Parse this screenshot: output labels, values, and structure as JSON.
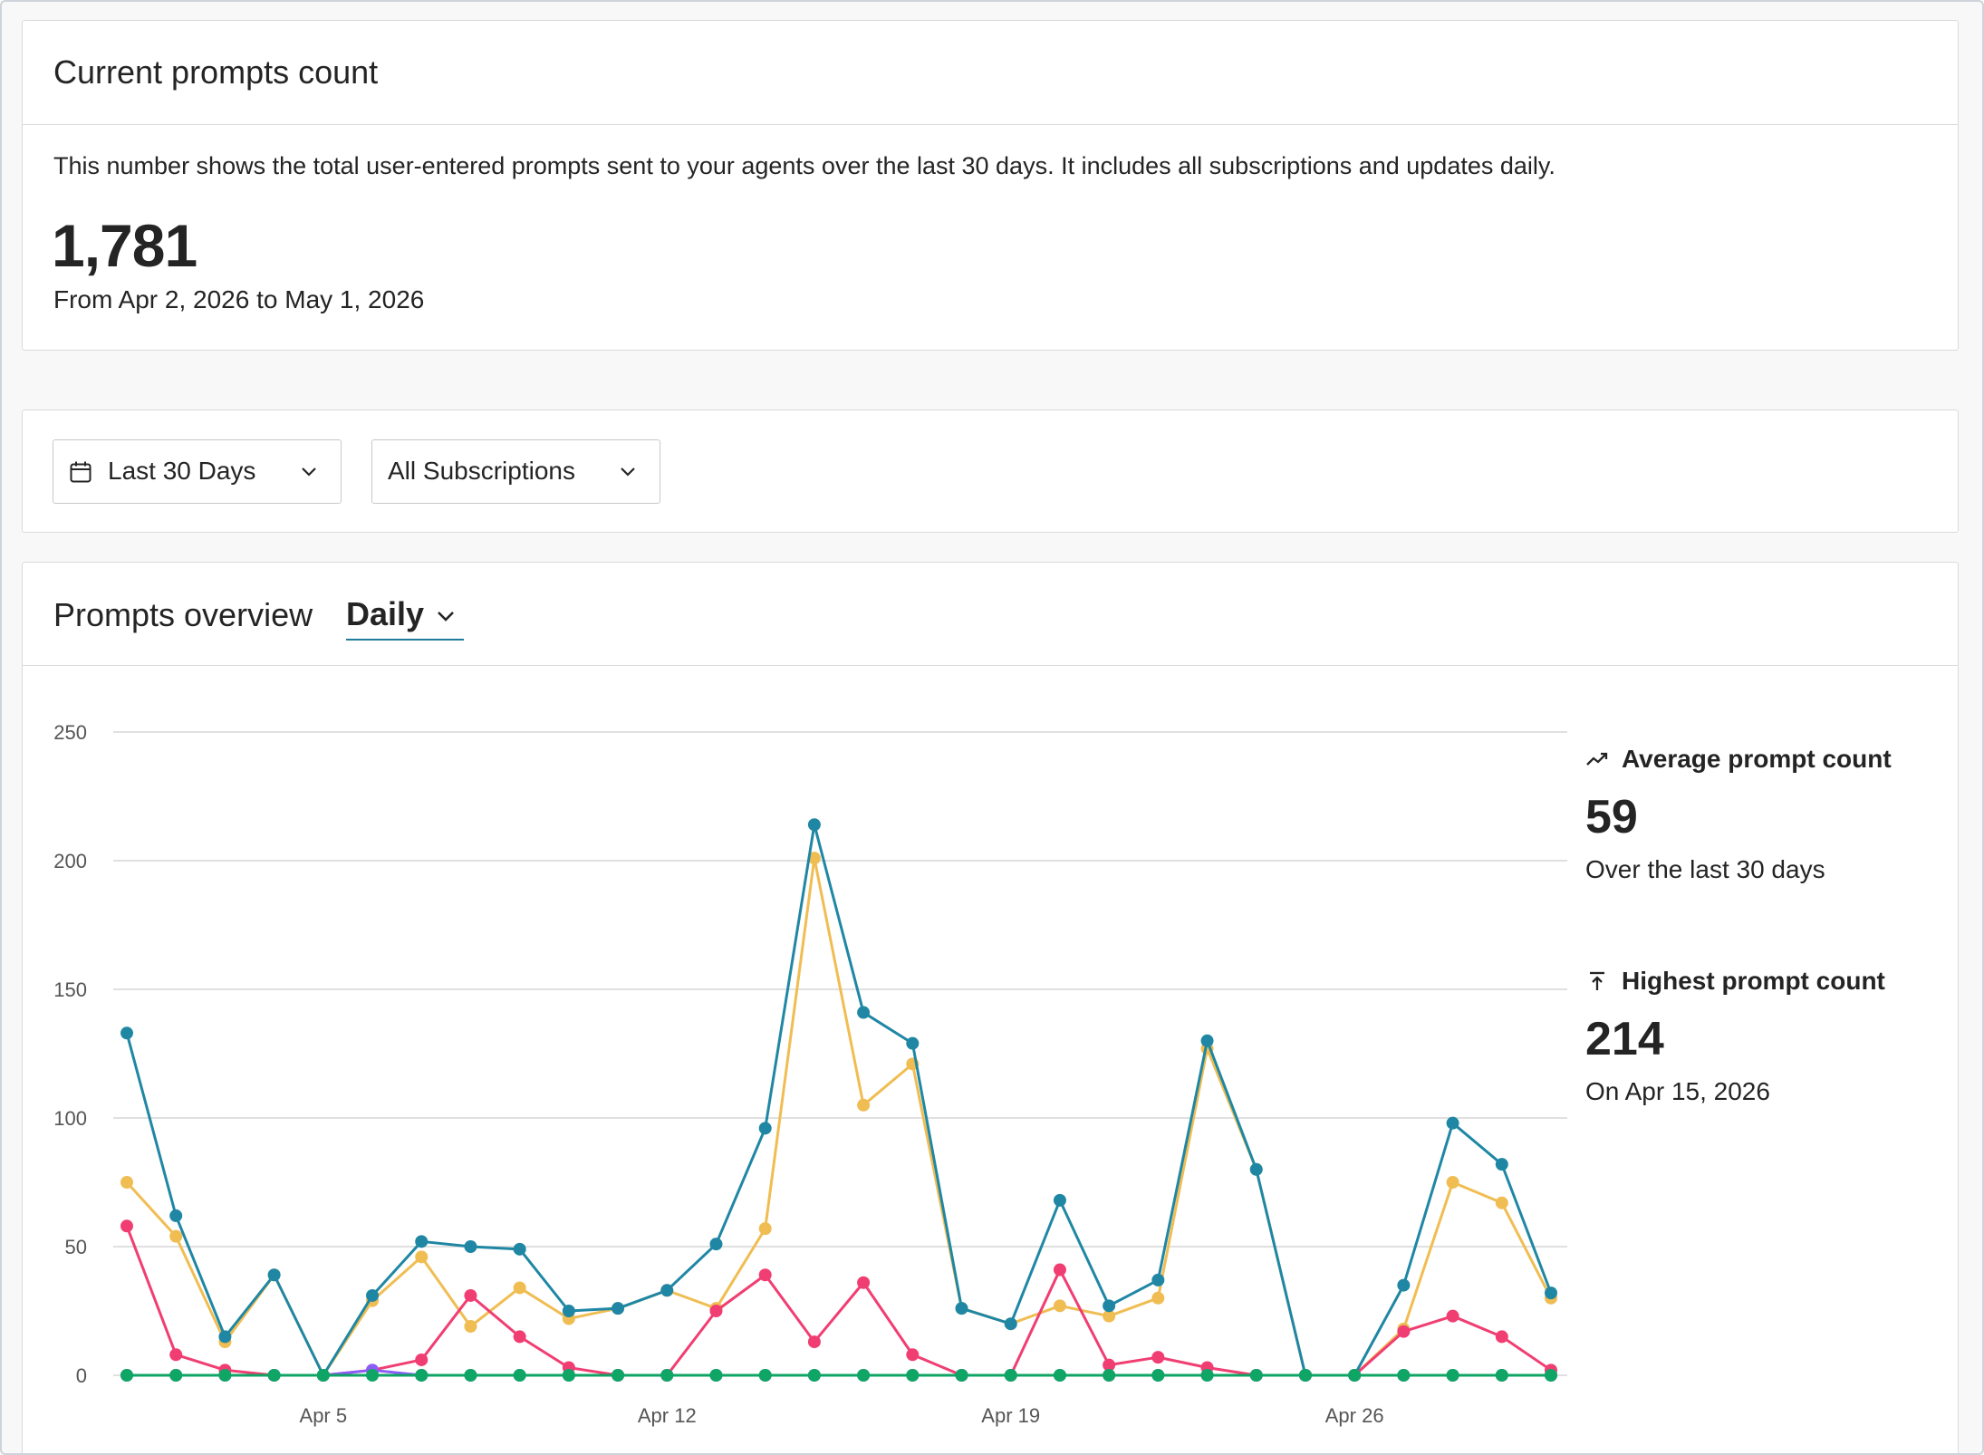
{
  "count_card": {
    "title": "Current prompts count",
    "description": "This number shows the total user-entered prompts sent to your agents over the last 30 days. It includes all subscriptions and updates daily.",
    "total": "1,781",
    "range": "From Apr 2, 2026 to May 1, 2026"
  },
  "filters": {
    "date_range": "Last 30 Days",
    "subscription": "All Subscriptions",
    "calendar_icon": "calendar-icon",
    "chevron_icon": "chevron-down-icon"
  },
  "overview": {
    "title": "Prompts overview",
    "granularity": "Daily"
  },
  "stats": {
    "average": {
      "icon": "trend-line-icon",
      "label": "Average prompt count",
      "value": "59",
      "sub": "Over the last 30 days"
    },
    "highest": {
      "icon": "arrow-up-to-line-icon",
      "label": "Highest prompt count",
      "value": "214",
      "sub": "On Apr 15, 2026"
    }
  },
  "chart_data": {
    "type": "line",
    "title": "",
    "xlabel": "",
    "ylabel": "",
    "ylim": [
      0,
      250
    ],
    "yticks": [
      0,
      50,
      100,
      150,
      200,
      250
    ],
    "x_tick_labels": [
      {
        "day": 5,
        "label": "Apr 5"
      },
      {
        "day": 12,
        "label": "Apr 12"
      },
      {
        "day": 19,
        "label": "Apr 19"
      },
      {
        "day": 26,
        "label": "Apr 26"
      }
    ],
    "x": [
      1,
      2,
      3,
      4,
      5,
      6,
      7,
      8,
      9,
      10,
      11,
      12,
      13,
      14,
      15,
      16,
      17,
      18,
      19,
      20,
      21,
      22,
      23,
      24,
      25,
      26,
      27,
      28,
      29,
      30
    ],
    "grid": true,
    "series": [
      {
        "color": "#f0bd52",
        "values": [
          75,
          54,
          13,
          39,
          0,
          29,
          46,
          19,
          34,
          22,
          26,
          33,
          26,
          57,
          201,
          105,
          121,
          26,
          20,
          27,
          23,
          30,
          127,
          80,
          0,
          0,
          18,
          75,
          67,
          30
        ]
      },
      {
        "color": "#f03e72",
        "values": [
          58,
          8,
          2,
          0,
          0,
          2,
          6,
          31,
          15,
          3,
          0,
          0,
          25,
          39,
          13,
          36,
          8,
          0,
          0,
          41,
          4,
          7,
          3,
          0,
          0,
          0,
          17,
          23,
          15,
          2
        ]
      },
      {
        "color": "#8b5cf6",
        "values": [
          0,
          0,
          0,
          0,
          0,
          2,
          0,
          0,
          0,
          0,
          0,
          0,
          0,
          0,
          0,
          0,
          0,
          0,
          0,
          0,
          0,
          0,
          0,
          0,
          0,
          0,
          0,
          0,
          0,
          0
        ]
      },
      {
        "color": "#1f87a4",
        "values": [
          133,
          62,
          15,
          39,
          0,
          31,
          52,
          50,
          49,
          25,
          26,
          33,
          51,
          96,
          214,
          141,
          129,
          26,
          20,
          68,
          27,
          37,
          130,
          80,
          0,
          0,
          35,
          98,
          82,
          32
        ]
      },
      {
        "color": "#0fa564",
        "values": [
          0,
          0,
          0,
          0,
          0,
          0,
          0,
          0,
          0,
          0,
          0,
          0,
          0,
          0,
          0,
          0,
          0,
          0,
          0,
          0,
          0,
          0,
          0,
          0,
          0,
          0,
          0,
          0,
          0,
          0
        ]
      }
    ]
  }
}
